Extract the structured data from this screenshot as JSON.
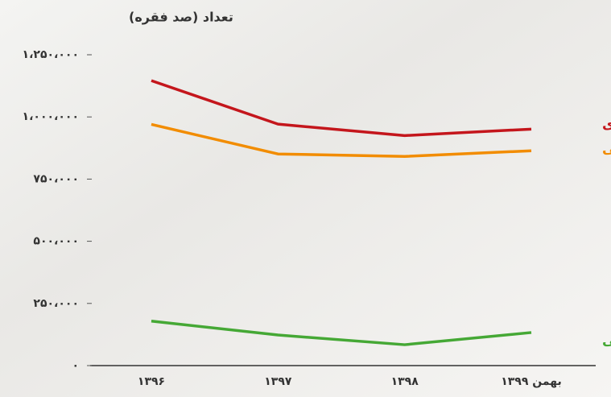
{
  "chart_data": {
    "type": "line",
    "title": "تعداد (صد فقره)",
    "categories": [
      "۱۳۹۶",
      "۱۳۹۷",
      "۱۳۹۸",
      "بهمن ۱۳۹۹"
    ],
    "series": [
      {
        "name": "مبادله‌ای",
        "color": "#c4161c",
        "values": [
          1146000,
          971000,
          925000,
          951000
        ]
      },
      {
        "name": "وصولی",
        "color": "#f28c00",
        "values": [
          970000,
          851000,
          841000,
          864000
        ]
      },
      {
        "name": "برگشتی",
        "color": "#45a835",
        "values": [
          179000,
          123000,
          84000,
          133000
        ]
      }
    ],
    "ylim": [
      0,
      1250000
    ],
    "yticks": [
      {
        "value": 0,
        "label": "۰"
      },
      {
        "value": 250000,
        "label": "۲۵۰،۰۰۰"
      },
      {
        "value": 500000,
        "label": "۵۰۰،۰۰۰"
      },
      {
        "value": 750000,
        "label": "۷۵۰،۰۰۰"
      },
      {
        "value": 1000000,
        "label": "۱،۰۰۰،۰۰۰"
      },
      {
        "value": 1250000,
        "label": "۱،۲۵۰،۰۰۰"
      }
    ],
    "grid": false
  }
}
